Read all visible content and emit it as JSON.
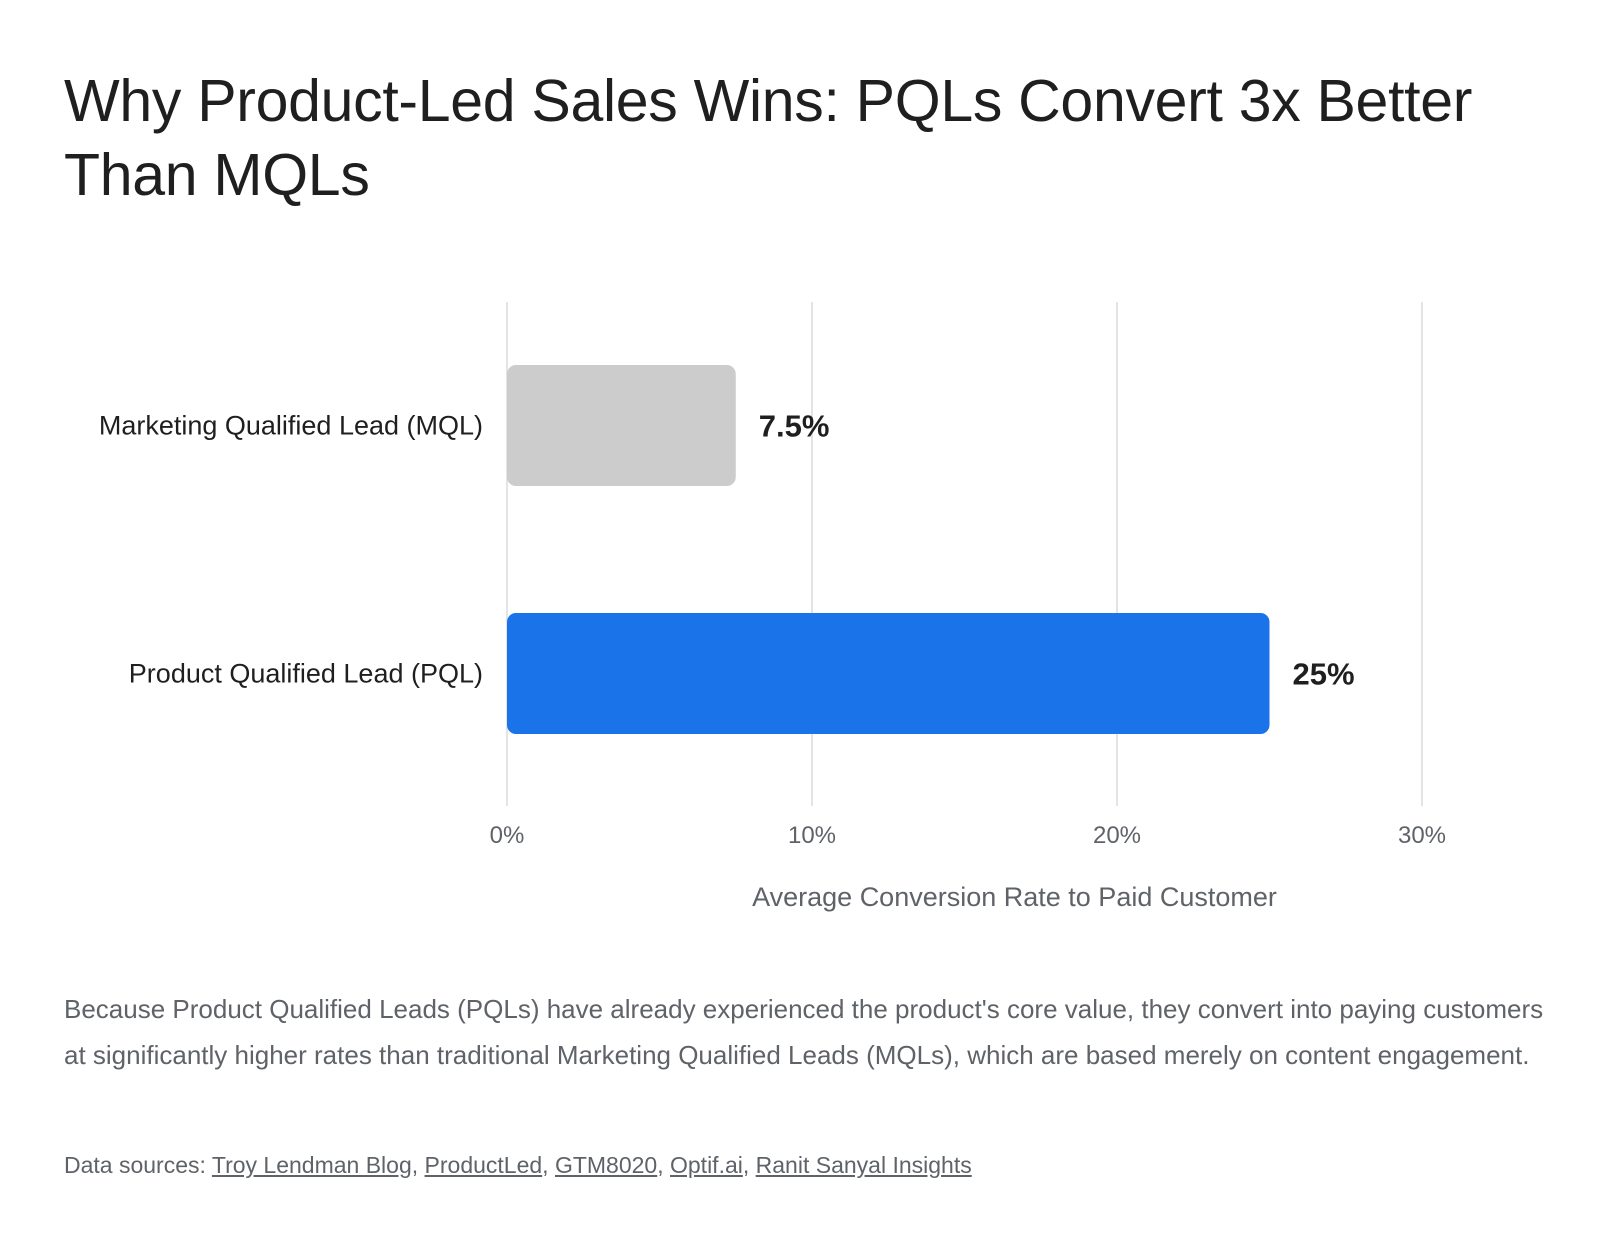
{
  "title": "Why Product-Led Sales Wins: PQLs Convert 3x Better Than MQLs",
  "description": "Because Product Qualified Leads (PQLs) have already experienced the product's core value, they convert into paying customers at significantly higher rates than traditional Marketing Qualified Leads (MQLs), which are based merely on content engagement.",
  "sources": {
    "label": "Data sources: ",
    "links": [
      "Troy Lendman Blog",
      "ProductLed",
      "GTM8020",
      "Optif.ai",
      "Ranit Sanyal Insights"
    ],
    "separator": ", "
  },
  "chart_data": {
    "type": "bar",
    "orientation": "horizontal",
    "categories": [
      "Marketing Qualified Lead (MQL)",
      "Product Qualified Lead (PQL)"
    ],
    "values": [
      7.5,
      25
    ],
    "value_labels": [
      "7.5%",
      "25%"
    ],
    "colors": [
      "#cccccc",
      "#1a73e8"
    ],
    "xlabel": "Average Conversion Rate to Paid Customer",
    "ylabel": "",
    "xlim": [
      0,
      30
    ],
    "xticks": [
      0,
      10,
      20,
      30
    ],
    "xtick_labels": [
      "0%",
      "10%",
      "20%",
      "30%"
    ],
    "grid": true,
    "legend": "none"
  },
  "colors": {
    "gridline": "#dadce0",
    "axis_text": "#5f6368",
    "label_text": "#1f1f1f"
  }
}
